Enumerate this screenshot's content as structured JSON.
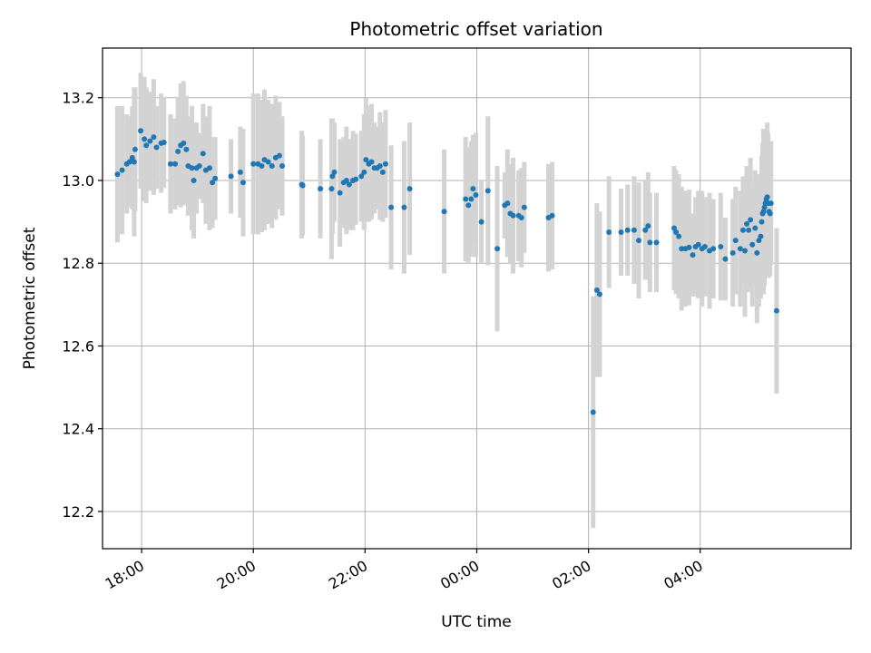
{
  "chart_data": {
    "type": "scatter",
    "title": "Photometric offset variation",
    "xlabel": "UTC time",
    "ylabel": "Photometric offset",
    "grid": true,
    "colors": {
      "point": "#1f77b4",
      "error_bar": "#d3d3d3",
      "grid": "#b0b0b0"
    },
    "xlim": [
      "17:18",
      "06:42"
    ],
    "ylim": [
      12.11,
      13.32
    ],
    "x_ticks": [
      {
        "value": "18:00",
        "label": "18:00"
      },
      {
        "value": "20:00",
        "label": "20:00"
      },
      {
        "value": "22:00",
        "label": "22:00"
      },
      {
        "value": "00:00",
        "label": "00:00"
      },
      {
        "value": "02:00",
        "label": "02:00"
      },
      {
        "value": "04:00",
        "label": "04:00"
      }
    ],
    "y_ticks": [
      {
        "value": 12.2,
        "label": "12.2"
      },
      {
        "value": 12.4,
        "label": "12.4"
      },
      {
        "value": 12.6,
        "label": "12.6"
      },
      {
        "value": 12.8,
        "label": "12.8"
      },
      {
        "value": 13.0,
        "label": "13.0"
      },
      {
        "value": 13.2,
        "label": "13.2"
      }
    ],
    "points": [
      {
        "x": "17:34",
        "y": 13.015,
        "err": 0.165
      },
      {
        "x": "17:39",
        "y": 13.025,
        "err": 0.155
      },
      {
        "x": "17:44",
        "y": 13.04,
        "err": 0.12
      },
      {
        "x": "17:47",
        "y": 13.045,
        "err": 0.11
      },
      {
        "x": "17:50",
        "y": 13.055,
        "err": 0.125
      },
      {
        "x": "17:53",
        "y": 13.075,
        "err": 0.15
      },
      {
        "x": "17:52",
        "y": 13.045,
        "err": 0.18
      },
      {
        "x": "17:59",
        "y": 13.12,
        "err": 0.14
      },
      {
        "x": "18:03",
        "y": 13.1,
        "err": 0.15
      },
      {
        "x": "18:05",
        "y": 13.085,
        "err": 0.14
      },
      {
        "x": "18:09",
        "y": 13.095,
        "err": 0.12
      },
      {
        "x": "18:13",
        "y": 13.105,
        "err": 0.14
      },
      {
        "x": "18:16",
        "y": 13.08,
        "err": 0.1
      },
      {
        "x": "18:21",
        "y": 13.09,
        "err": 0.12
      },
      {
        "x": "18:24",
        "y": 13.092,
        "err": 0.11
      },
      {
        "x": "18:31",
        "y": 13.04,
        "err": 0.12
      },
      {
        "x": "18:36",
        "y": 13.04,
        "err": 0.11
      },
      {
        "x": "18:39",
        "y": 13.07,
        "err": 0.13
      },
      {
        "x": "18:42",
        "y": 13.085,
        "err": 0.15
      },
      {
        "x": "18:45",
        "y": 13.09,
        "err": 0.15
      },
      {
        "x": "18:48",
        "y": 13.075,
        "err": 0.13
      },
      {
        "x": "18:50",
        "y": 13.035,
        "err": 0.12
      },
      {
        "x": "18:54",
        "y": 13.03,
        "err": 0.15
      },
      {
        "x": "18:56",
        "y": 13.0,
        "err": 0.14
      },
      {
        "x": "18:59",
        "y": 13.03,
        "err": 0.11
      },
      {
        "x": "19:02",
        "y": 13.035,
        "err": 0.08
      },
      {
        "x": "19:06",
        "y": 13.065,
        "err": 0.12
      },
      {
        "x": "19:09",
        "y": 13.025,
        "err": 0.13
      },
      {
        "x": "19:13",
        "y": 13.03,
        "err": 0.15
      },
      {
        "x": "19:16",
        "y": 12.995,
        "err": 0.11
      },
      {
        "x": "19:19",
        "y": 13.005,
        "err": 0.1
      },
      {
        "x": "19:36",
        "y": 13.01,
        "err": 0.09
      },
      {
        "x": "19:46",
        "y": 13.02,
        "err": 0.11
      },
      {
        "x": "19:49",
        "y": 12.995,
        "err": 0.13
      },
      {
        "x": "20:00",
        "y": 13.04,
        "err": 0.17
      },
      {
        "x": "20:05",
        "y": 13.04,
        "err": 0.17
      },
      {
        "x": "20:09",
        "y": 13.035,
        "err": 0.16
      },
      {
        "x": "20:12",
        "y": 13.05,
        "err": 0.17
      },
      {
        "x": "20:16",
        "y": 13.045,
        "err": 0.15
      },
      {
        "x": "20:20",
        "y": 13.035,
        "err": 0.15
      },
      {
        "x": "20:24",
        "y": 13.055,
        "err": 0.15
      },
      {
        "x": "20:28",
        "y": 13.06,
        "err": 0.13
      },
      {
        "x": "20:31",
        "y": 13.035,
        "err": 0.12
      },
      {
        "x": "20:52",
        "y": 12.99,
        "err": 0.13
      },
      {
        "x": "20:53",
        "y": 12.988,
        "err": 0.12
      },
      {
        "x": "21:12",
        "y": 12.98,
        "err": 0.12
      },
      {
        "x": "21:24",
        "y": 12.98,
        "err": 0.17
      },
      {
        "x": "21:25",
        "y": 13.01,
        "err": 0.14
      },
      {
        "x": "21:27",
        "y": 13.02,
        "err": 0.12
      },
      {
        "x": "21:33",
        "y": 12.97,
        "err": 0.13
      },
      {
        "x": "21:37",
        "y": 12.995,
        "err": 0.11
      },
      {
        "x": "21:40",
        "y": 13.0,
        "err": 0.13
      },
      {
        "x": "21:43",
        "y": 12.99,
        "err": 0.11
      },
      {
        "x": "21:47",
        "y": 13.0,
        "err": 0.12
      },
      {
        "x": "21:50",
        "y": 13.003,
        "err": 0.11
      },
      {
        "x": "21:56",
        "y": 13.01,
        "err": 0.11
      },
      {
        "x": "21:59",
        "y": 13.02,
        "err": 0.14
      },
      {
        "x": "22:01",
        "y": 13.05,
        "err": 0.15
      },
      {
        "x": "22:04",
        "y": 13.04,
        "err": 0.14
      },
      {
        "x": "22:07",
        "y": 13.045,
        "err": 0.14
      },
      {
        "x": "22:10",
        "y": 13.03,
        "err": 0.11
      },
      {
        "x": "22:13",
        "y": 13.03,
        "err": 0.1
      },
      {
        "x": "22:16",
        "y": 13.035,
        "err": 0.13
      },
      {
        "x": "22:19",
        "y": 13.02,
        "err": 0.12
      },
      {
        "x": "22:22",
        "y": 13.04,
        "err": 0.13
      },
      {
        "x": "22:28",
        "y": 12.935,
        "err": 0.15
      },
      {
        "x": "22:42",
        "y": 12.935,
        "err": 0.16
      },
      {
        "x": "22:48",
        "y": 12.98,
        "err": 0.16
      },
      {
        "x": "23:25",
        "y": 12.925,
        "err": 0.15
      },
      {
        "x": "23:48",
        "y": 12.955,
        "err": 0.15
      },
      {
        "x": "23:51",
        "y": 12.94,
        "err": 0.14
      },
      {
        "x": "23:54",
        "y": 12.955,
        "err": 0.14
      },
      {
        "x": "23:56",
        "y": 12.98,
        "err": 0.13
      },
      {
        "x": "23:59",
        "y": 12.965,
        "err": 0.15
      },
      {
        "x": "00:05",
        "y": 12.9,
        "err": 0.1
      },
      {
        "x": "00:12",
        "y": 12.975,
        "err": 0.18
      },
      {
        "x": "00:22",
        "y": 12.835,
        "err": 0.2
      },
      {
        "x": "00:30",
        "y": 12.94,
        "err": 0.08
      },
      {
        "x": "00:33",
        "y": 12.945,
        "err": 0.13
      },
      {
        "x": "00:36",
        "y": 12.92,
        "err": 0.12
      },
      {
        "x": "00:39",
        "y": 12.915,
        "err": 0.14
      },
      {
        "x": "00:45",
        "y": 12.915,
        "err": 0.11
      },
      {
        "x": "00:48",
        "y": 12.91,
        "err": 0.12
      },
      {
        "x": "00:51",
        "y": 12.935,
        "err": 0.11
      },
      {
        "x": "01:17",
        "y": 12.91,
        "err": 0.13
      },
      {
        "x": "01:21",
        "y": 12.915,
        "err": 0.13
      },
      {
        "x": "02:05",
        "y": 12.44,
        "err": 0.28
      },
      {
        "x": "02:09",
        "y": 12.735,
        "err": 0.21
      },
      {
        "x": "02:12",
        "y": 12.725,
        "err": 0.2
      },
      {
        "x": "02:22",
        "y": 12.875,
        "err": 0.135
      },
      {
        "x": "02:35",
        "y": 12.875,
        "err": 0.105
      },
      {
        "x": "02:42",
        "y": 12.88,
        "err": 0.11
      },
      {
        "x": "02:49",
        "y": 12.88,
        "err": 0.13
      },
      {
        "x": "02:54",
        "y": 12.855,
        "err": 0.14
      },
      {
        "x": "03:01",
        "y": 12.88,
        "err": 0.12
      },
      {
        "x": "03:04",
        "y": 12.89,
        "err": 0.13
      },
      {
        "x": "03:06",
        "y": 12.85,
        "err": 0.12
      },
      {
        "x": "03:13",
        "y": 12.85,
        "err": 0.12
      },
      {
        "x": "03:32",
        "y": 12.885,
        "err": 0.15
      },
      {
        "x": "03:34",
        "y": 12.875,
        "err": 0.15
      },
      {
        "x": "03:37",
        "y": 12.865,
        "err": 0.15
      },
      {
        "x": "03:40",
        "y": 12.835,
        "err": 0.15
      },
      {
        "x": "03:44",
        "y": 12.835,
        "err": 0.14
      },
      {
        "x": "03:48",
        "y": 12.838,
        "err": 0.14
      },
      {
        "x": "03:52",
        "y": 12.82,
        "err": 0.1
      },
      {
        "x": "03:55",
        "y": 12.84,
        "err": 0.12
      },
      {
        "x": "03:58",
        "y": 12.845,
        "err": 0.13
      },
      {
        "x": "04:02",
        "y": 12.835,
        "err": 0.14
      },
      {
        "x": "04:05",
        "y": 12.84,
        "err": 0.12
      },
      {
        "x": "04:10",
        "y": 12.83,
        "err": 0.14
      },
      {
        "x": "04:14",
        "y": 12.835,
        "err": 0.12
      },
      {
        "x": "04:22",
        "y": 12.84,
        "err": 0.13
      },
      {
        "x": "04:27",
        "y": 12.81,
        "err": 0.1
      },
      {
        "x": "04:35",
        "y": 12.825,
        "err": 0.13
      },
      {
        "x": "04:38",
        "y": 12.855,
        "err": 0.13
      },
      {
        "x": "04:43",
        "y": 12.835,
        "err": 0.14
      },
      {
        "x": "04:46",
        "y": 12.88,
        "err": 0.13
      },
      {
        "x": "04:48",
        "y": 12.83,
        "err": 0.16
      },
      {
        "x": "04:50",
        "y": 12.895,
        "err": 0.14
      },
      {
        "x": "04:52",
        "y": 12.88,
        "err": 0.15
      },
      {
        "x": "04:54",
        "y": 12.905,
        "err": 0.15
      },
      {
        "x": "04:56",
        "y": 12.845,
        "err": 0.15
      },
      {
        "x": "04:59",
        "y": 12.885,
        "err": 0.14
      },
      {
        "x": "05:01",
        "y": 12.825,
        "err": 0.17
      },
      {
        "x": "05:03",
        "y": 12.855,
        "err": 0.16
      },
      {
        "x": "05:05",
        "y": 12.865,
        "err": 0.15
      },
      {
        "x": "05:06",
        "y": 12.9,
        "err": 0.16
      },
      {
        "x": "05:07",
        "y": 12.92,
        "err": 0.17
      },
      {
        "x": "05:08",
        "y": 12.925,
        "err": 0.2
      },
      {
        "x": "05:09",
        "y": 12.935,
        "err": 0.19
      },
      {
        "x": "05:10",
        "y": 12.945,
        "err": 0.18
      },
      {
        "x": "05:11",
        "y": 12.955,
        "err": 0.16
      },
      {
        "x": "05:12",
        "y": 12.96,
        "err": 0.18
      },
      {
        "x": "05:13",
        "y": 12.945,
        "err": 0.17
      },
      {
        "x": "05:14",
        "y": 12.925,
        "err": 0.16
      },
      {
        "x": "05:15",
        "y": 12.92,
        "err": 0.15
      },
      {
        "x": "05:16",
        "y": 12.945,
        "err": 0.15
      },
      {
        "x": "05:22",
        "y": 12.685,
        "err": 0.2
      }
    ]
  }
}
